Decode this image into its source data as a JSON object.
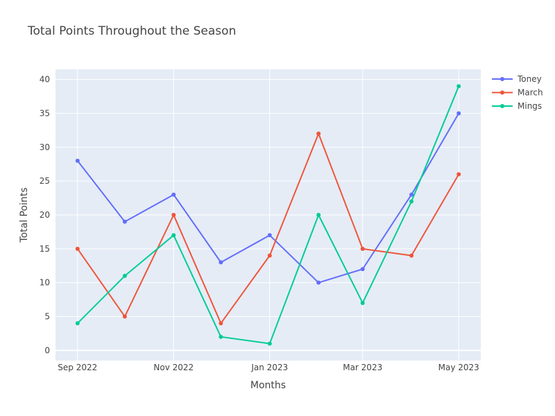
{
  "chart_data": {
    "type": "line",
    "title": "Total Points Throughout the Season",
    "xlabel": "Months",
    "ylabel": "Total Points",
    "x": [
      "2022-09-01",
      "2022-10-01",
      "2022-11-01",
      "2022-12-01",
      "2023-01-01",
      "2023-02-01",
      "2023-03-01",
      "2023-04-01",
      "2023-05-01"
    ],
    "x_range": [
      "2022-08-18",
      "2023-05-15"
    ],
    "xticks": [
      {
        "value": "2022-09-01",
        "label": "Sep 2022"
      },
      {
        "value": "2022-11-01",
        "label": "Nov 2022"
      },
      {
        "value": "2023-01-01",
        "label": "Jan 2023"
      },
      {
        "value": "2023-03-01",
        "label": "Mar 2023"
      },
      {
        "value": "2023-05-01",
        "label": "May 2023"
      }
    ],
    "ylim": [
      -1.5,
      41.5
    ],
    "yticks": [
      0,
      5,
      10,
      15,
      20,
      25,
      30,
      35,
      40
    ],
    "grid": true,
    "legend_position": "top-right",
    "series": [
      {
        "name": "Toney",
        "color": "#636efa",
        "values": [
          28,
          19,
          23,
          13,
          17,
          10,
          12,
          23,
          35
        ]
      },
      {
        "name": "March",
        "color": "#ef553b",
        "values": [
          15,
          5,
          20,
          4,
          14,
          32,
          15,
          14,
          26
        ]
      },
      {
        "name": "Mings",
        "color": "#00cc96",
        "values": [
          4,
          11,
          17,
          2,
          1,
          20,
          7,
          22,
          39
        ]
      }
    ]
  }
}
